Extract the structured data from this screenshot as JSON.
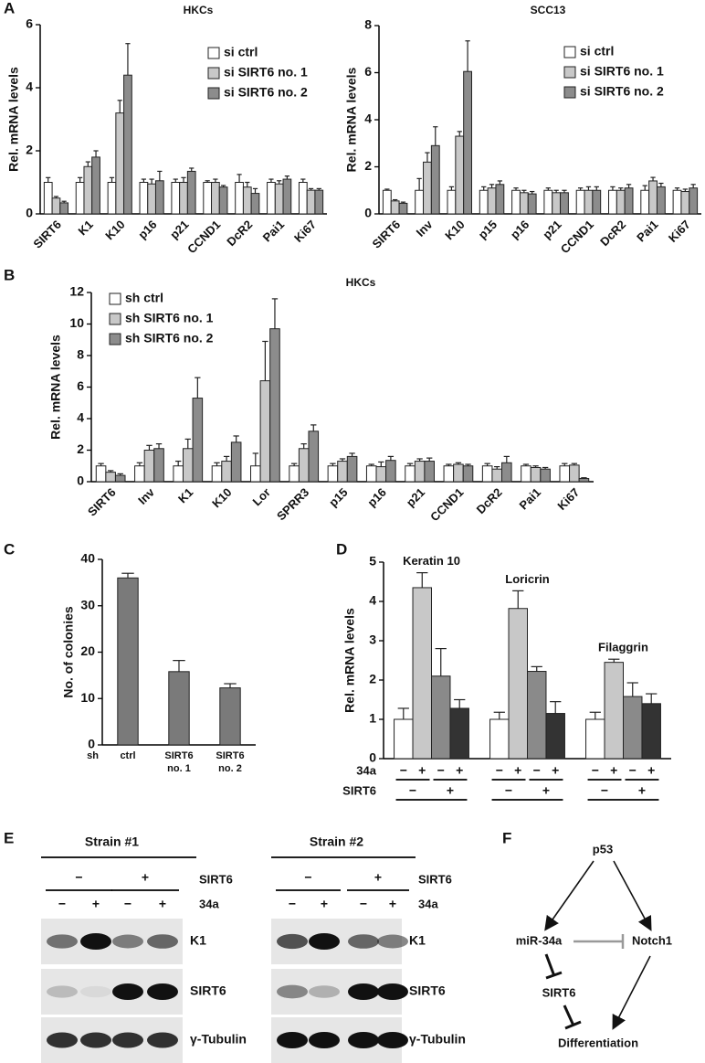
{
  "panel_labels": [
    "A",
    "B",
    "C",
    "D",
    "E",
    "F"
  ],
  "chart_data": [
    {
      "type": "bar",
      "title": "HKCs",
      "y_label": "Rel. mRNA levels",
      "categories": [
        "SIRT6",
        "K1",
        "K10",
        "p16",
        "p21",
        "CCND1",
        "DcR2",
        "Pai1",
        "Ki67"
      ],
      "series": [
        {
          "name": "si ctrl",
          "color": "#ffffff",
          "values": [
            1.0,
            1.0,
            1.0,
            1.0,
            1.0,
            1.0,
            1.0,
            1.0,
            1.0
          ],
          "errors": [
            0.15,
            0.15,
            0.15,
            0.1,
            0.1,
            0.05,
            0.25,
            0.1,
            0.1
          ]
        },
        {
          "name": "si SIRT6 no. 1",
          "color": "#c8c8c8",
          "values": [
            0.5,
            1.5,
            3.2,
            0.95,
            1.0,
            1.0,
            0.85,
            0.95,
            0.75
          ],
          "errors": [
            0.05,
            0.15,
            0.4,
            0.15,
            0.15,
            0.1,
            0.15,
            0.1,
            0.05
          ]
        },
        {
          "name": "si SIRT6 no. 2",
          "color": "#8c8c8c",
          "values": [
            0.35,
            1.8,
            4.4,
            1.05,
            1.35,
            0.85,
            0.65,
            1.1,
            0.75
          ],
          "errors": [
            0.05,
            0.2,
            1.0,
            0.3,
            0.1,
            0.05,
            0.15,
            0.1,
            0.05
          ]
        }
      ],
      "ylim": [
        0,
        6
      ],
      "yticks": [
        0,
        2,
        4,
        6
      ],
      "legend": "upper right"
    },
    {
      "type": "bar",
      "title": "SCC13",
      "y_label": "Rel. mRNA levels",
      "categories": [
        "SIRT6",
        "Inv",
        "K10",
        "p15",
        "p16",
        "p21",
        "CCND1",
        "DcR2",
        "Pai1",
        "Ki67"
      ],
      "series": [
        {
          "name": "si ctrl",
          "color": "#ffffff",
          "values": [
            1.0,
            1.0,
            1.0,
            1.0,
            1.0,
            1.0,
            1.0,
            1.0,
            1.0,
            1.0
          ],
          "errors": [
            0.05,
            0.5,
            0.15,
            0.15,
            0.1,
            0.1,
            0.1,
            0.15,
            0.2,
            0.1
          ]
        },
        {
          "name": "si SIRT6 no. 1",
          "color": "#c8c8c8",
          "values": [
            0.55,
            2.2,
            3.3,
            1.1,
            0.9,
            0.9,
            1.0,
            1.0,
            1.4,
            0.95
          ],
          "errors": [
            0.05,
            0.4,
            0.2,
            0.15,
            0.1,
            0.1,
            0.15,
            0.1,
            0.15,
            0.1
          ]
        },
        {
          "name": "si SIRT6 no. 2",
          "color": "#8c8c8c",
          "values": [
            0.45,
            2.9,
            6.05,
            1.25,
            0.85,
            0.9,
            1.0,
            1.1,
            1.15,
            1.1
          ],
          "errors": [
            0.05,
            0.8,
            1.3,
            0.15,
            0.1,
            0.1,
            0.15,
            0.15,
            0.15,
            0.15
          ]
        }
      ],
      "ylim": [
        0,
        8
      ],
      "yticks": [
        0,
        2,
        4,
        6,
        8
      ],
      "legend": "upper right"
    },
    {
      "type": "bar",
      "title": "HKCs",
      "y_label": "Rel. mRNA levels",
      "categories": [
        "SIRT6",
        "Inv",
        "K1",
        "K10",
        "Lor",
        "SPRR3",
        "p15",
        "p16",
        "p21",
        "CCND1",
        "DcR2",
        "Pai1",
        "Ki67"
      ],
      "series": [
        {
          "name": "sh ctrl",
          "color": "#ffffff",
          "values": [
            1.0,
            1.0,
            1.0,
            1.0,
            1.0,
            1.0,
            1.0,
            1.0,
            1.0,
            1.0,
            1.0,
            1.0,
            1.0
          ],
          "errors": [
            0.15,
            0.2,
            0.3,
            0.2,
            0.8,
            0.15,
            0.15,
            0.1,
            0.15,
            0.1,
            0.15,
            0.1,
            0.15
          ]
        },
        {
          "name": "sh SIRT6 no. 1",
          "color": "#c8c8c8",
          "values": [
            0.6,
            2.0,
            2.1,
            1.3,
            6.4,
            2.1,
            1.3,
            0.95,
            1.3,
            1.1,
            0.8,
            0.9,
            1.05
          ],
          "errors": [
            0.1,
            0.3,
            0.6,
            0.3,
            2.5,
            0.3,
            0.15,
            0.3,
            0.15,
            0.1,
            0.15,
            0.1,
            0.1
          ]
        },
        {
          "name": "sh SIRT6 no. 2",
          "color": "#8c8c8c",
          "values": [
            0.4,
            2.1,
            5.3,
            2.5,
            9.7,
            3.2,
            1.6,
            1.35,
            1.3,
            1.0,
            1.2,
            0.8,
            0.2
          ],
          "errors": [
            0.1,
            0.3,
            1.3,
            0.4,
            1.9,
            0.4,
            0.2,
            0.25,
            0.2,
            0.1,
            0.4,
            0.1,
            0.05
          ]
        }
      ],
      "ylim": [
        0,
        12
      ],
      "yticks": [
        0,
        2,
        4,
        6,
        8,
        10,
        12
      ],
      "legend": "upper left"
    },
    {
      "type": "bar",
      "y_label": "No. of colonies",
      "x_prefix": "sh",
      "categories": [
        [
          "ctrl"
        ],
        [
          "SIRT6",
          "no. 1"
        ],
        [
          "SIRT6",
          "no. 2"
        ]
      ],
      "series": [
        {
          "color": "#7a7a7a",
          "values": [
            36,
            15.8,
            12.3
          ],
          "errors": [
            1,
            2.4,
            0.9
          ]
        }
      ],
      "ylim": [
        0,
        40
      ],
      "yticks": [
        0,
        10,
        20,
        30,
        40
      ]
    },
    {
      "type": "bar",
      "y_label": "Rel. mRNA levels",
      "categories": [
        "Keratin 10",
        "Loricrin",
        "Filaggrin"
      ],
      "series": [
        {
          "color": "#ffffff",
          "values": [
            1.0,
            1.0,
            1.0
          ],
          "errors": [
            0.28,
            0.18,
            0.18
          ]
        },
        {
          "color": "#c8c8c8",
          "values": [
            4.35,
            3.82,
            2.45
          ],
          "errors": [
            0.38,
            0.45,
            0.08
          ]
        },
        {
          "color": "#8a8a8a",
          "values": [
            2.1,
            2.22,
            1.58
          ],
          "errors": [
            0.7,
            0.12,
            0.35
          ]
        },
        {
          "color": "#333333",
          "values": [
            1.28,
            1.15,
            1.4
          ],
          "errors": [
            0.22,
            0.3,
            0.25
          ]
        }
      ],
      "conditions": [
        {
          "label": "34a",
          "signs": [
            "−",
            "+",
            "−",
            "+"
          ]
        },
        {
          "label": "SIRT6",
          "signs": [
            "−",
            "+"
          ]
        }
      ],
      "ylim": [
        0,
        5
      ],
      "yticks": [
        0,
        1,
        2,
        3,
        4,
        5
      ]
    }
  ],
  "blots": {
    "strains": [
      "Strain #1",
      "Strain #2"
    ],
    "treatments": [
      "SIRT6",
      "34a"
    ],
    "signs": [
      "−",
      "+"
    ],
    "rows": [
      "K1",
      "SIRT6",
      "γ-Tubulin"
    ]
  },
  "diagram": {
    "nodes": [
      "p53",
      "miR-34a",
      "Notch1",
      "SIRT6",
      "Differentiation"
    ]
  }
}
